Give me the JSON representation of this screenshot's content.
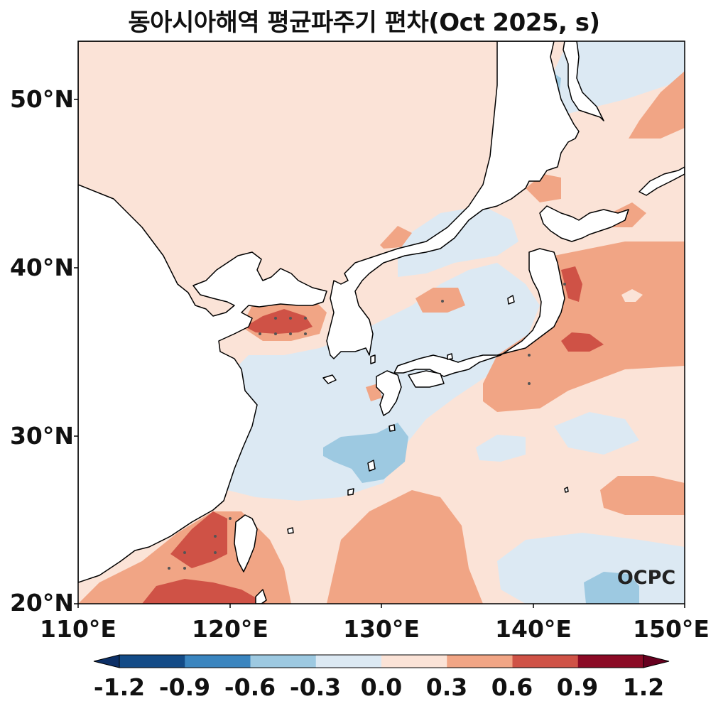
{
  "title": "동아시아해역 평균파주기 편차(Oct 2025, s)",
  "map": {
    "lat_ticks": [
      "50°N",
      "40°N",
      "30°N",
      "20°N"
    ],
    "lon_ticks": [
      "110°E",
      "120°E",
      "130°E",
      "140°E",
      "150°E"
    ],
    "lat_range": [
      20,
      53.5
    ],
    "lon_range": [
      110,
      150
    ]
  },
  "colorbar": {
    "labels": [
      "-1.2",
      "-0.9",
      "-0.6",
      "-0.3",
      "0.0",
      "0.3",
      "0.6",
      "0.9",
      "1.2"
    ],
    "colors": [
      "#134b87",
      "#3a85bf",
      "#9dc9e1",
      "#dce9f3",
      "#fbe3d7",
      "#f1a585",
      "#cf5246",
      "#8b0a25"
    ],
    "extend": "both"
  },
  "logo": "OCPC",
  "colors": {
    "land": "#ffffff",
    "coast": "#000000"
  }
}
